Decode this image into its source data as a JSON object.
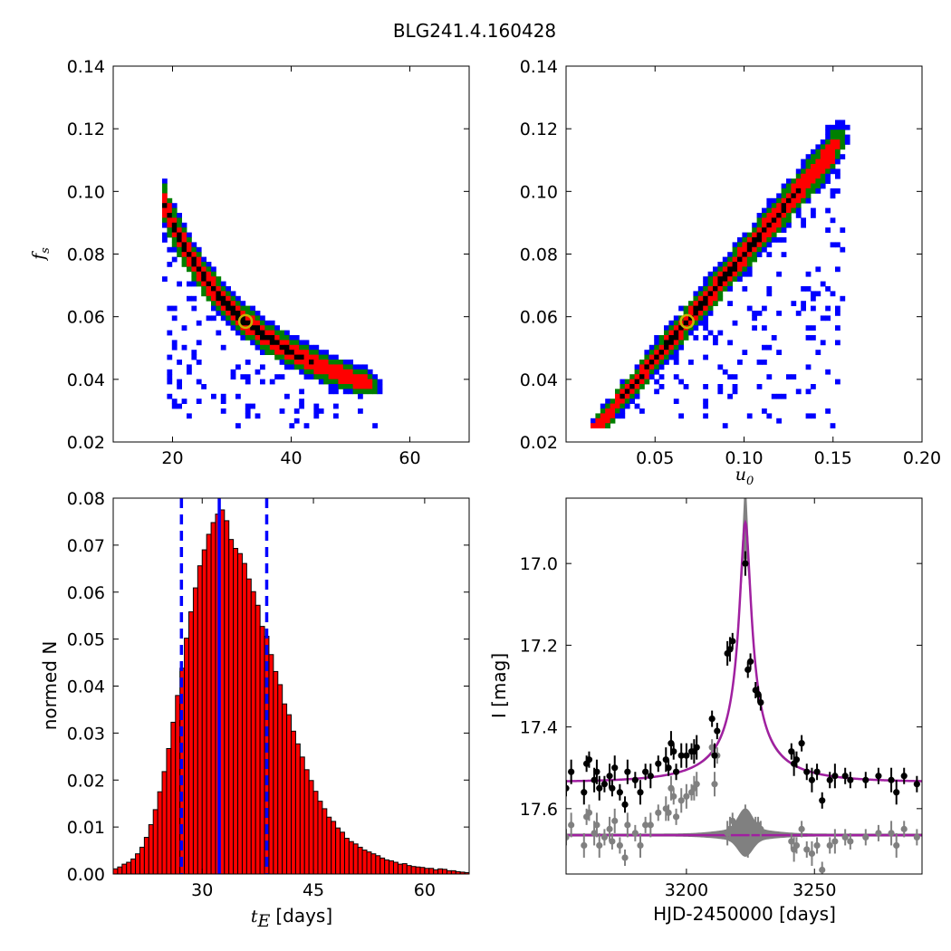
{
  "figure": {
    "title": "BLG241.4.160428"
  },
  "chart_data": [
    {
      "type": "heatmap",
      "panel": "top-left",
      "xlabel": "",
      "ylabel": "f_s",
      "xlim": [
        10,
        70
      ],
      "ylim": [
        0.02,
        0.14
      ],
      "xticks": [
        "20",
        "40",
        "60"
      ],
      "yticks": [
        "0.02",
        "0.04",
        "0.06",
        "0.08",
        "0.10",
        "0.12",
        "0.14"
      ],
      "levels": [
        {
          "name": "3-sigma",
          "color": "#0000ff"
        },
        {
          "name": "2-sigma",
          "color": "#007f00"
        },
        {
          "name": "1-sigma",
          "color": "#ff0000"
        },
        {
          "name": "core",
          "color": "#000000"
        }
      ],
      "best_fit": {
        "x": 32.3,
        "y": 0.0585,
        "edge_color": "#c8b400"
      }
    },
    {
      "type": "heatmap",
      "panel": "top-right",
      "xlabel": "u_0",
      "ylabel": "",
      "xlim": [
        0.0,
        0.2
      ],
      "ylim": [
        0.02,
        0.14
      ],
      "xticks": [
        "0.05",
        "0.10",
        "0.15",
        "0.20"
      ],
      "yticks": [
        "0.02",
        "0.04",
        "0.06",
        "0.08",
        "0.10",
        "0.12",
        "0.14"
      ],
      "levels": [
        {
          "name": "3-sigma",
          "color": "#0000ff"
        },
        {
          "name": "2-sigma",
          "color": "#007f00"
        },
        {
          "name": "1-sigma",
          "color": "#ff0000"
        },
        {
          "name": "core",
          "color": "#000000"
        }
      ],
      "best_fit": {
        "x": 0.068,
        "y": 0.0585,
        "edge_color": "#c8b400"
      }
    },
    {
      "type": "bar",
      "panel": "bottom-left",
      "xlabel": "t_E",
      "xlabel_unit": "[days]",
      "ylabel": "normed N",
      "xlim": [
        18,
        66
      ],
      "ylim": [
        0.0,
        0.08
      ],
      "xticks": [
        "30",
        "45",
        "60"
      ],
      "yticks": [
        "0.00",
        "0.01",
        "0.02",
        "0.03",
        "0.04",
        "0.05",
        "0.06",
        "0.07",
        "0.08"
      ],
      "bar_color": "#ff0000",
      "bin_width": 0.6,
      "x_start": 18.0,
      "values": [
        0.0011,
        0.0015,
        0.0021,
        0.0025,
        0.0032,
        0.0043,
        0.0057,
        0.0078,
        0.0105,
        0.0137,
        0.0175,
        0.0218,
        0.0267,
        0.0323,
        0.038,
        0.0438,
        0.0502,
        0.0558,
        0.0609,
        0.0656,
        0.069,
        0.0723,
        0.0748,
        0.0766,
        0.0775,
        0.0752,
        0.0712,
        0.0693,
        0.0682,
        0.0661,
        0.0628,
        0.0601,
        0.0572,
        0.0527,
        0.0506,
        0.0467,
        0.0431,
        0.0403,
        0.0362,
        0.0339,
        0.0304,
        0.0277,
        0.0249,
        0.0222,
        0.0199,
        0.0176,
        0.0155,
        0.0139,
        0.0121,
        0.0112,
        0.0098,
        0.0089,
        0.0076,
        0.0069,
        0.0064,
        0.0057,
        0.0051,
        0.0047,
        0.0043,
        0.0039,
        0.0034,
        0.003,
        0.0028,
        0.0025,
        0.0021,
        0.0022,
        0.0018,
        0.0016,
        0.0015,
        0.0014,
        0.0012,
        0.0012,
        0.0009,
        0.0011,
        0.001,
        0.0007,
        0.0007,
        0.0005,
        0.0004,
        0.0003
      ],
      "vlines": [
        {
          "x": 32.3,
          "style": "solid",
          "color": "#0000ff"
        },
        {
          "x": 27.2,
          "style": "dashed",
          "color": "#0000ff"
        },
        {
          "x": 38.7,
          "style": "dashed",
          "color": "#0000ff"
        }
      ]
    },
    {
      "type": "scatter",
      "panel": "bottom-right",
      "xlabel": "HJD-2450000 [days]",
      "ylabel": "I [mag]",
      "xlim": [
        3153,
        3292
      ],
      "ylim": [
        17.76,
        16.84
      ],
      "y_inverted": true,
      "xticks": [
        "3200",
        "3250"
      ],
      "yticks": [
        "17.0",
        "17.2",
        "17.4",
        "17.6"
      ],
      "model": {
        "color": "#a020a0",
        "t0": 3223.0,
        "peak_mag": 16.9,
        "base_mag": 17.535,
        "tE": 32.3,
        "u0": 0.068,
        "fs": 0.0585
      },
      "residual_model": {
        "color": "#808080",
        "baseline": 17.665
      },
      "series": [
        {
          "name": "data",
          "color": "#000000",
          "x": [
            3153,
            3155,
            3160,
            3161,
            3162,
            3164,
            3165,
            3166,
            3168,
            3170,
            3171,
            3172,
            3174,
            3176,
            3177,
            3180,
            3182,
            3184,
            3186,
            3189,
            3192,
            3193,
            3194,
            3195,
            3196,
            3198,
            3200,
            3202,
            3203,
            3204,
            3210,
            3211,
            3212,
            3216,
            3217,
            3218,
            3223,
            3224,
            3225,
            3227,
            3228,
            3229,
            3241,
            3242,
            3243,
            3245,
            3247,
            3249,
            3251,
            3253,
            3256,
            3258,
            3262,
            3264,
            3270,
            3275,
            3280,
            3282,
            3285,
            3290
          ],
          "y": [
            17.55,
            17.51,
            17.56,
            17.49,
            17.48,
            17.53,
            17.51,
            17.55,
            17.54,
            17.52,
            17.55,
            17.5,
            17.56,
            17.59,
            17.51,
            17.53,
            17.56,
            17.51,
            17.52,
            17.49,
            17.48,
            17.5,
            17.44,
            17.46,
            17.51,
            17.47,
            17.47,
            17.46,
            17.46,
            17.45,
            17.38,
            17.47,
            17.41,
            17.22,
            17.21,
            17.19,
            17.0,
            17.26,
            17.24,
            17.31,
            17.32,
            17.34,
            17.46,
            17.49,
            17.48,
            17.44,
            17.51,
            17.53,
            17.51,
            17.58,
            17.53,
            17.52,
            17.52,
            17.53,
            17.53,
            17.52,
            17.53,
            17.56,
            17.52,
            17.54
          ],
          "err": [
            0.02,
            0.03,
            0.03,
            0.02,
            0.02,
            0.03,
            0.03,
            0.03,
            0.02,
            0.03,
            0.02,
            0.03,
            0.02,
            0.02,
            0.03,
            0.02,
            0.03,
            0.02,
            0.03,
            0.02,
            0.03,
            0.02,
            0.03,
            0.02,
            0.02,
            0.03,
            0.03,
            0.02,
            0.03,
            0.03,
            0.02,
            0.03,
            0.02,
            0.03,
            0.03,
            0.02,
            0.03,
            0.02,
            0.02,
            0.02,
            0.02,
            0.02,
            0.02,
            0.03,
            0.02,
            0.02,
            0.02,
            0.03,
            0.02,
            0.02,
            0.02,
            0.03,
            0.02,
            0.02,
            0.02,
            0.02,
            0.03,
            0.03,
            0.02,
            0.02
          ]
        },
        {
          "name": "residuals",
          "color": "#808080",
          "x": [
            3153,
            3155,
            3160,
            3161,
            3162,
            3164,
            3165,
            3166,
            3168,
            3170,
            3171,
            3172,
            3174,
            3176,
            3177,
            3180,
            3182,
            3184,
            3186,
            3189,
            3192,
            3193,
            3194,
            3195,
            3196,
            3198,
            3200,
            3202,
            3203,
            3204,
            3210,
            3211,
            3212,
            3216,
            3217,
            3218,
            3223,
            3224,
            3225,
            3227,
            3228,
            3229,
            3241,
            3242,
            3243,
            3245,
            3247,
            3249,
            3251,
            3253,
            3256,
            3258,
            3262,
            3264,
            3270,
            3275,
            3280,
            3282,
            3285,
            3290
          ],
          "y": [
            17.67,
            17.64,
            17.69,
            17.62,
            17.61,
            17.66,
            17.64,
            17.69,
            17.67,
            17.65,
            17.68,
            17.63,
            17.69,
            17.72,
            17.64,
            17.66,
            17.69,
            17.64,
            17.64,
            17.61,
            17.6,
            17.61,
            17.55,
            17.57,
            17.62,
            17.58,
            17.57,
            17.56,
            17.55,
            17.54,
            17.45,
            17.54,
            17.47,
            17.66,
            17.65,
            17.63,
            17.62,
            17.7,
            17.68,
            17.64,
            17.64,
            17.65,
            17.68,
            17.7,
            17.69,
            17.65,
            17.7,
            17.71,
            17.69,
            17.75,
            17.69,
            17.68,
            17.67,
            17.68,
            17.67,
            17.66,
            17.66,
            17.69,
            17.65,
            17.67
          ],
          "err": [
            0.02,
            0.03,
            0.03,
            0.02,
            0.02,
            0.03,
            0.03,
            0.03,
            0.02,
            0.03,
            0.02,
            0.03,
            0.02,
            0.02,
            0.03,
            0.02,
            0.03,
            0.02,
            0.03,
            0.02,
            0.03,
            0.02,
            0.03,
            0.02,
            0.02,
            0.03,
            0.03,
            0.02,
            0.03,
            0.03,
            0.02,
            0.03,
            0.02,
            0.03,
            0.03,
            0.02,
            0.03,
            0.02,
            0.02,
            0.02,
            0.02,
            0.02,
            0.02,
            0.03,
            0.02,
            0.02,
            0.02,
            0.03,
            0.02,
            0.02,
            0.02,
            0.03,
            0.02,
            0.02,
            0.02,
            0.02,
            0.03,
            0.03,
            0.02,
            0.02
          ]
        }
      ]
    }
  ]
}
